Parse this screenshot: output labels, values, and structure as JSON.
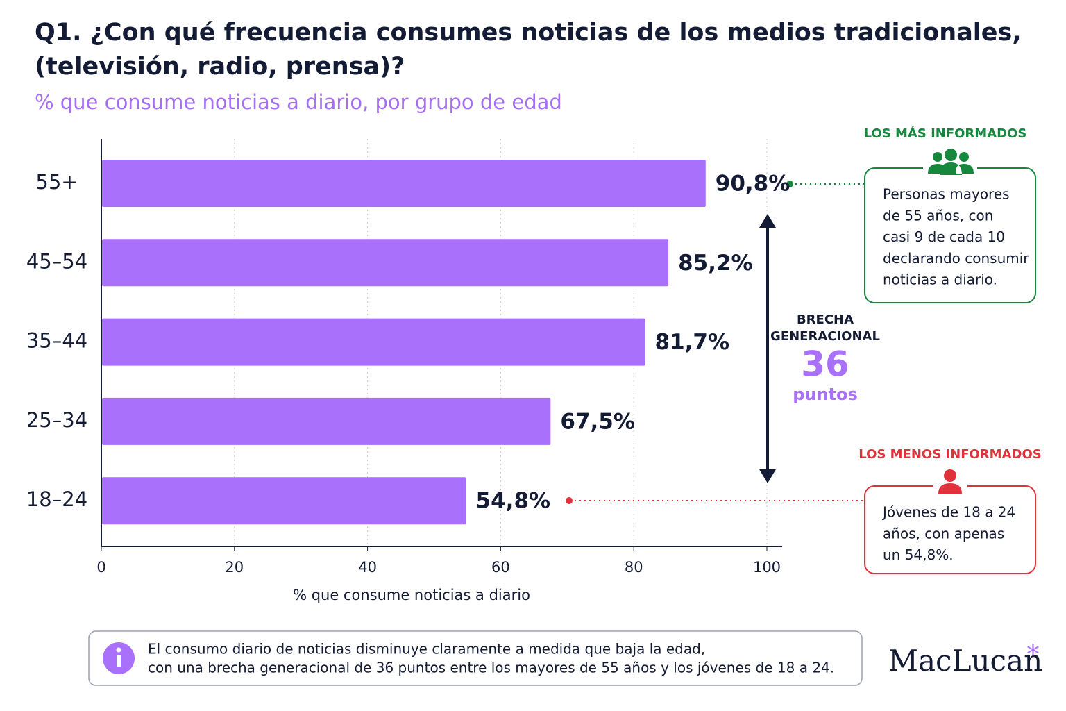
{
  "chart_data": {
    "type": "bar",
    "orientation": "horizontal",
    "title_lines": [
      "Q1. ¿Con qué frecuencia consumes noticias de los medios tradicionales,",
      "(televisión, radio, prensa)?"
    ],
    "subtitle": "% que consume noticias a diario, por grupo de edad",
    "categories": [
      "55+",
      "45–54",
      "35–44",
      "25–34",
      "18–24"
    ],
    "values": [
      90.8,
      85.2,
      81.7,
      67.5,
      54.8
    ],
    "value_labels": [
      "90,8%",
      "85,2%",
      "81,7%",
      "67,5%",
      "54,8%"
    ],
    "color": "#a970fb",
    "xlim": [
      0,
      100
    ],
    "xticks": [
      0,
      20,
      40,
      60,
      80,
      100
    ],
    "grid": true,
    "xlabel": "% que consume noticias a diario",
    "gap": {
      "label_lines": [
        "BRECHA",
        "GENERACIONAL"
      ],
      "value": 36,
      "unit": "puntos"
    }
  },
  "callouts": [
    {
      "title": "LOS MÁS INFORMADOS",
      "lines": [
        "Personas mayores",
        "de 55 años, con",
        "casi 9 de cada 10",
        "declarando consumir",
        "noticias a diario."
      ]
    },
    {
      "title": "LOS MENOS INFORMADOS",
      "lines": [
        "Jóvenes de 18 a 24",
        "años, con apenas",
        "un 54,8%."
      ]
    }
  ],
  "note": {
    "lines": [
      "El consumo diario de noticias disminuye claramente a medida que baja la edad,",
      "con una brecha generacional de 36 puntos entre los mayores de 55 años y los jóvenes de 18 a 24."
    ]
  },
  "logo": {
    "name": "MacLucan",
    "mark": "*"
  }
}
